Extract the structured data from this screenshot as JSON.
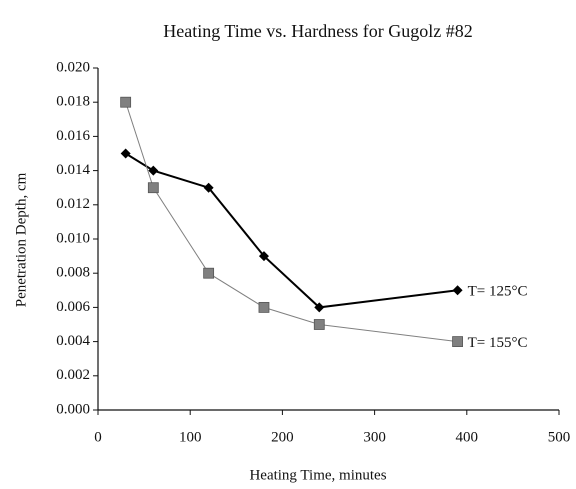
{
  "chart_data": {
    "type": "line",
    "title": "Heating Time vs. Hardness for Gugolz #82",
    "x_label": "Heating Time, minutes",
    "y_label": "Penetration Depth, cm",
    "x": [
      30,
      60,
      120,
      180,
      240,
      390
    ],
    "series": [
      {
        "name": "T= 125°C",
        "color": "#000000",
        "values": [
          0.015,
          0.014,
          0.013,
          0.009,
          0.006,
          0.007
        ]
      },
      {
        "name": "T= 155°C",
        "color": "#808080",
        "values": [
          0.018,
          0.013,
          0.008,
          0.006,
          0.005,
          0.004
        ]
      }
    ],
    "xlim": [
      0,
      500
    ],
    "xticks": [
      0,
      100,
      200,
      300,
      400,
      500
    ],
    "ylim": [
      0,
      0.02
    ],
    "yticks": [
      {
        "value": 0,
        "label": "0.000"
      },
      0.002,
      0.004,
      0.006,
      0.008,
      {
        "value": 0.01,
        "label": "0.010"
      },
      0.012,
      0.014,
      0.016,
      0.018,
      {
        "value": 0.02,
        "label": "0.020"
      }
    ],
    "grid": false
  }
}
